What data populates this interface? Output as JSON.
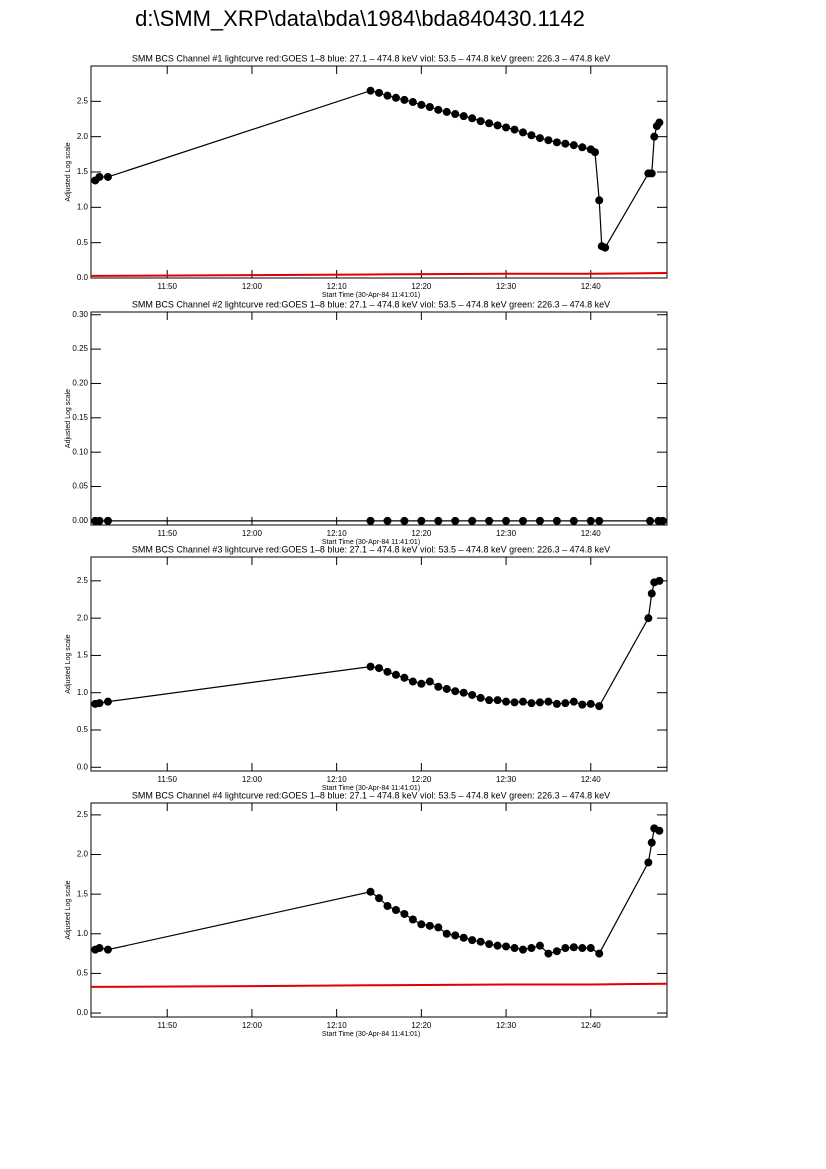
{
  "title": "d:\\SMM_XRP\\data\\bda\\1984\\bda840430.1142",
  "chart_data": [
    {
      "type": "line",
      "title": "SMM BCS Channel #1 lightcurve  red:GOES 1–8  blue: 27.1 – 474.8 keV  viol: 53.5 – 474.8 keV  green: 226.3 – 474.8 keV",
      "xlabel": "Start Time (30-Apr-84 11:41:01)",
      "ylabel": "Adjusted Log scale",
      "xlim": [
        41,
        109
      ],
      "xticks": [
        {
          "value": 50,
          "label": "11:50"
        },
        {
          "value": 60,
          "label": "12:00"
        },
        {
          "value": 70,
          "label": "12:10"
        },
        {
          "value": 80,
          "label": "12:20"
        },
        {
          "value": 90,
          "label": "12:30"
        },
        {
          "value": 100,
          "label": "12:40"
        }
      ],
      "ylim": [
        0,
        3.0
      ],
      "yticks": [
        {
          "value": 0,
          "label": "0.0"
        },
        0.5,
        {
          "value": 1,
          "label": "1.0"
        },
        1.5,
        {
          "value": 2,
          "label": "2.0"
        },
        2.5
      ],
      "series": [
        {
          "color": "#e00000",
          "markers": false,
          "x": [
            41,
            60,
            74,
            90,
            100,
            109
          ],
          "values": [
            0.03,
            0.04,
            0.05,
            0.06,
            0.06,
            0.07
          ]
        },
        {
          "color": "#000000",
          "markers": true,
          "x": [
            41.5,
            42,
            43,
            74,
            75,
            76,
            77,
            78,
            79,
            80,
            81,
            82,
            83,
            84,
            85,
            86,
            87,
            88,
            89,
            90,
            91,
            92,
            93,
            94,
            95,
            96,
            97,
            98,
            99,
            100,
            100.5,
            101,
            101.3,
            101.7,
            106.8,
            107.2,
            107.5,
            107.8,
            108.1
          ],
          "values": [
            1.38,
            1.43,
            1.43,
            2.65,
            2.62,
            2.58,
            2.55,
            2.52,
            2.49,
            2.45,
            2.42,
            2.38,
            2.35,
            2.32,
            2.29,
            2.26,
            2.22,
            2.19,
            2.16,
            2.13,
            2.1,
            2.06,
            2.02,
            1.98,
            1.95,
            1.92,
            1.9,
            1.88,
            1.85,
            1.82,
            1.78,
            1.1,
            0.45,
            0.43,
            1.48,
            1.48,
            2.0,
            2.15,
            2.2
          ]
        }
      ]
    },
    {
      "type": "line",
      "title": "SMM BCS Channel #2 lightcurve  red:GOES 1–8  blue: 27.1 – 474.8 keV  viol: 53.5 – 474.8 keV  green: 226.3 – 474.8 keV",
      "xlabel": "Start Time (30-Apr-84 11:41:01)",
      "ylabel": "Adjusted Log scale",
      "xlim": [
        41,
        109
      ],
      "xticks": [
        {
          "value": 50,
          "label": "11:50"
        },
        {
          "value": 60,
          "label": "12:00"
        },
        {
          "value": 70,
          "label": "12:10"
        },
        {
          "value": 80,
          "label": "12:20"
        },
        {
          "value": 90,
          "label": "12:30"
        },
        {
          "value": 100,
          "label": "12:40"
        }
      ],
      "ylim": [
        -0.006,
        0.304
      ],
      "yticks": [
        {
          "value": 0,
          "label": "0.00"
        },
        0.05,
        {
          "value": 0.1,
          "label": "0.10"
        },
        0.15,
        {
          "value": 0.2,
          "label": "0.20"
        },
        0.25,
        {
          "value": 0.3,
          "label": "0.30"
        }
      ],
      "series": [
        {
          "color": "#000000",
          "markers": true,
          "x": [
            41.5,
            42,
            43,
            74,
            76,
            78,
            80,
            82,
            84,
            86,
            88,
            90,
            92,
            94,
            96,
            98,
            100,
            101,
            107,
            108,
            108.5
          ],
          "values": [
            0,
            0,
            0,
            0,
            0,
            0,
            0,
            0,
            0,
            0,
            0,
            0,
            0,
            0,
            0,
            0,
            0,
            0,
            0,
            0,
            0
          ]
        }
      ]
    },
    {
      "type": "line",
      "title": "SMM BCS Channel #3 lightcurve  red:GOES 1–8  blue: 27.1 – 474.8 keV  viol: 53.5 – 474.8 keV  green: 226.3 – 474.8 keV",
      "xlabel": "Start Time (30-Apr-84 11:41:01)",
      "ylabel": "Adjusted Log scale",
      "xlim": [
        41,
        109
      ],
      "xticks": [
        {
          "value": 50,
          "label": "11:50"
        },
        {
          "value": 60,
          "label": "12:00"
        },
        {
          "value": 70,
          "label": "12:10"
        },
        {
          "value": 80,
          "label": "12:20"
        },
        {
          "value": 90,
          "label": "12:30"
        },
        {
          "value": 100,
          "label": "12:40"
        }
      ],
      "ylim": [
        -0.05,
        2.82
      ],
      "yticks": [
        {
          "value": 0,
          "label": "0.0"
        },
        0.5,
        {
          "value": 1,
          "label": "1.0"
        },
        1.5,
        {
          "value": 2,
          "label": "2.0"
        },
        2.5
      ],
      "series": [
        {
          "color": "#000000",
          "markers": true,
          "x": [
            41.5,
            42,
            43,
            74,
            75,
            76,
            77,
            78,
            79,
            80,
            81,
            82,
            83,
            84,
            85,
            86,
            87,
            88,
            89,
            90,
            91,
            92,
            93,
            94,
            95,
            96,
            97,
            98,
            99,
            100,
            101,
            106.8,
            107.2,
            107.5,
            108.1
          ],
          "values": [
            0.85,
            0.86,
            0.88,
            1.35,
            1.33,
            1.28,
            1.24,
            1.2,
            1.15,
            1.12,
            1.15,
            1.08,
            1.05,
            1.02,
            1.0,
            0.97,
            0.93,
            0.9,
            0.9,
            0.88,
            0.87,
            0.88,
            0.86,
            0.87,
            0.88,
            0.85,
            0.86,
            0.88,
            0.84,
            0.85,
            0.82,
            2.0,
            2.33,
            2.48,
            2.5
          ]
        }
      ]
    },
    {
      "type": "line",
      "title": "SMM BCS Channel #4 lightcurve  red:GOES 1–8  blue: 27.1 – 474.8 keV  viol: 53.5 – 474.8 keV  green: 226.3 – 474.8 keV",
      "xlabel": "Start Time (30-Apr-84 11:41:01)",
      "ylabel": "Adjusted Log scale",
      "xlim": [
        41,
        109
      ],
      "xticks": [
        {
          "value": 50,
          "label": "11:50"
        },
        {
          "value": 60,
          "label": "12:00"
        },
        {
          "value": 70,
          "label": "12:10"
        },
        {
          "value": 80,
          "label": "12:20"
        },
        {
          "value": 90,
          "label": "12:30"
        },
        {
          "value": 100,
          "label": "12:40"
        }
      ],
      "ylim": [
        -0.05,
        2.65
      ],
      "yticks": [
        {
          "value": 0,
          "label": "0.0"
        },
        0.5,
        {
          "value": 1,
          "label": "1.0"
        },
        1.5,
        {
          "value": 2,
          "label": "2.0"
        },
        2.5
      ],
      "series": [
        {
          "color": "#e00000",
          "markers": false,
          "x": [
            41,
            60,
            74,
            90,
            100,
            109
          ],
          "values": [
            0.33,
            0.34,
            0.35,
            0.36,
            0.36,
            0.37
          ]
        },
        {
          "color": "#000000",
          "markers": true,
          "x": [
            41.5,
            42,
            43,
            74,
            75,
            76,
            77,
            78,
            79,
            80,
            81,
            82,
            83,
            84,
            85,
            86,
            87,
            88,
            89,
            90,
            91,
            92,
            93,
            94,
            95,
            96,
            97,
            98,
            99,
            100,
            101,
            106.8,
            107.2,
            107.5,
            108.1
          ],
          "values": [
            0.8,
            0.82,
            0.8,
            1.53,
            1.45,
            1.35,
            1.3,
            1.25,
            1.18,
            1.12,
            1.1,
            1.08,
            1.0,
            0.98,
            0.95,
            0.92,
            0.9,
            0.87,
            0.85,
            0.84,
            0.82,
            0.8,
            0.82,
            0.85,
            0.75,
            0.78,
            0.82,
            0.83,
            0.82,
            0.82,
            0.75,
            1.9,
            2.15,
            2.33,
            2.3
          ]
        }
      ]
    }
  ]
}
